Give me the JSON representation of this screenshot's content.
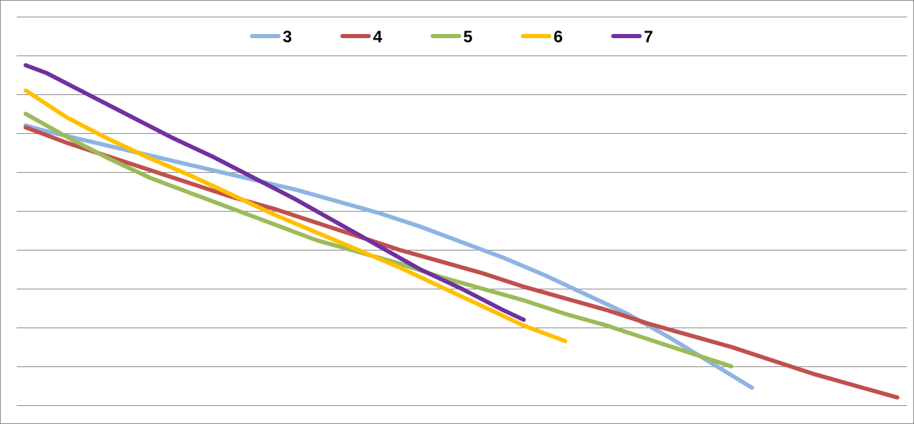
{
  "chart_data": {
    "type": "line",
    "title": "",
    "xlabel": "",
    "ylabel": "",
    "x_range": [
      0,
      42
    ],
    "y_range": [
      0,
      10
    ],
    "grid": true,
    "gridline_values": [
      0,
      1,
      2,
      3,
      4,
      5,
      6,
      7,
      8,
      9,
      10
    ],
    "legend_position": "top-center",
    "series": [
      {
        "name": "3",
        "color": "#8EB4E3",
        "x": [
          0,
          1,
          3,
          5,
          7,
          9,
          11,
          13,
          15,
          17,
          19,
          21,
          23,
          25,
          27,
          29,
          31,
          33,
          35
        ],
        "y": [
          7.2,
          7.05,
          6.8,
          6.55,
          6.3,
          6.05,
          5.8,
          5.55,
          5.25,
          4.95,
          4.6,
          4.2,
          3.8,
          3.35,
          2.85,
          2.35,
          1.75,
          1.1,
          0.45
        ]
      },
      {
        "name": "4",
        "color": "#C0504D",
        "x": [
          0,
          2,
          4,
          6,
          8,
          10,
          12,
          14,
          16,
          18,
          20,
          22,
          24,
          26,
          28,
          30,
          32,
          34,
          36,
          38,
          40,
          42
        ],
        "y": [
          7.15,
          6.75,
          6.4,
          6.05,
          5.7,
          5.35,
          5.05,
          4.7,
          4.35,
          4.0,
          3.7,
          3.4,
          3.05,
          2.75,
          2.45,
          2.1,
          1.8,
          1.5,
          1.15,
          0.8,
          0.5,
          0.2
        ]
      },
      {
        "name": "5",
        "color": "#9BBB59",
        "x": [
          0,
          2,
          4,
          6,
          8,
          10,
          12,
          14,
          16,
          18,
          20,
          22,
          24,
          26,
          28,
          30,
          32,
          34
        ],
        "y": [
          7.5,
          6.9,
          6.35,
          5.85,
          5.45,
          5.05,
          4.65,
          4.25,
          3.95,
          3.65,
          3.3,
          3.0,
          2.7,
          2.35,
          2.05,
          1.7,
          1.35,
          1.0
        ]
      },
      {
        "name": "6",
        "color": "#FFC000",
        "x": [
          0,
          2,
          4,
          6,
          8,
          10,
          12,
          14,
          16,
          18,
          20,
          22,
          24,
          26
        ],
        "y": [
          8.1,
          7.4,
          6.85,
          6.35,
          5.9,
          5.4,
          4.9,
          4.45,
          4.0,
          3.55,
          3.05,
          2.55,
          2.05,
          1.65
        ]
      },
      {
        "name": "7",
        "color": "#7030A0",
        "x": [
          0,
          1,
          3,
          5,
          7,
          9,
          11,
          13,
          15,
          17,
          19,
          21,
          23,
          24
        ],
        "y": [
          8.75,
          8.55,
          8.0,
          7.45,
          6.9,
          6.4,
          5.85,
          5.3,
          4.7,
          4.1,
          3.5,
          3.0,
          2.45,
          2.2
        ]
      }
    ]
  }
}
